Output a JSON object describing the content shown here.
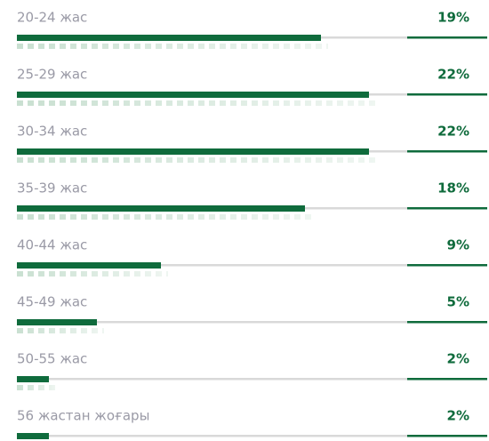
{
  "chart_data": {
    "type": "bar",
    "orientation": "horizontal",
    "categories": [
      "20-24 жас",
      "25-29 жас",
      "30-34 жас",
      "35-39 жас",
      "40-44 жас",
      "45-49 жас",
      "50-55 жас",
      "56 жастан жоғары"
    ],
    "values": [
      19,
      22,
      22,
      18,
      9,
      5,
      2,
      2
    ],
    "value_labels": [
      "19%",
      "22%",
      "22%",
      "18%",
      "9%",
      "5%",
      "2%",
      "2%"
    ],
    "color": "#0f6b3c"
  }
}
